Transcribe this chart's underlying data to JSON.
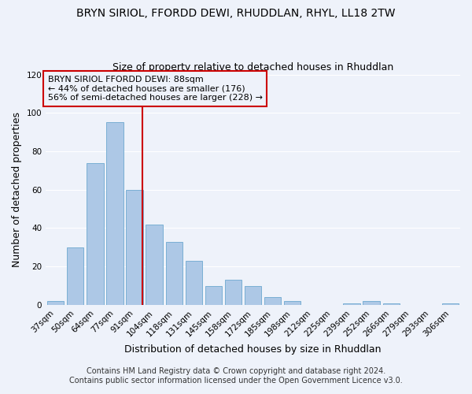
{
  "title": "BRYN SIRIOL, FFORDD DEWI, RHUDDLAN, RHYL, LL18 2TW",
  "subtitle": "Size of property relative to detached houses in Rhuddlan",
  "xlabel": "Distribution of detached houses by size in Rhuddlan",
  "ylabel": "Number of detached properties",
  "categories": [
    "37sqm",
    "50sqm",
    "64sqm",
    "77sqm",
    "91sqm",
    "104sqm",
    "118sqm",
    "131sqm",
    "145sqm",
    "158sqm",
    "172sqm",
    "185sqm",
    "198sqm",
    "212sqm",
    "225sqm",
    "239sqm",
    "252sqm",
    "266sqm",
    "279sqm",
    "293sqm",
    "306sqm"
  ],
  "values": [
    2,
    30,
    74,
    95,
    60,
    42,
    33,
    23,
    10,
    13,
    10,
    4,
    2,
    0,
    0,
    1,
    2,
    1,
    0,
    0,
    1
  ],
  "bar_color": "#adc8e6",
  "bar_edge_color": "#7aafd4",
  "ylim": [
    0,
    120
  ],
  "yticks": [
    0,
    20,
    40,
    60,
    80,
    100,
    120
  ],
  "annotation_box_text": "BRYN SIRIOL FFORDD DEWI: 88sqm\n← 44% of detached houses are smaller (176)\n56% of semi-detached houses are larger (228) →",
  "vline_x": 4.4,
  "vline_color": "#cc0000",
  "box_edge_color": "#cc0000",
  "footer_line1": "Contains HM Land Registry data © Crown copyright and database right 2024.",
  "footer_line2": "Contains public sector information licensed under the Open Government Licence v3.0.",
  "background_color": "#eef2fa",
  "grid_color": "#ffffff",
  "title_fontsize": 10,
  "subtitle_fontsize": 9,
  "axis_label_fontsize": 9,
  "tick_fontsize": 7.5,
  "annotation_fontsize": 8,
  "footer_fontsize": 7
}
